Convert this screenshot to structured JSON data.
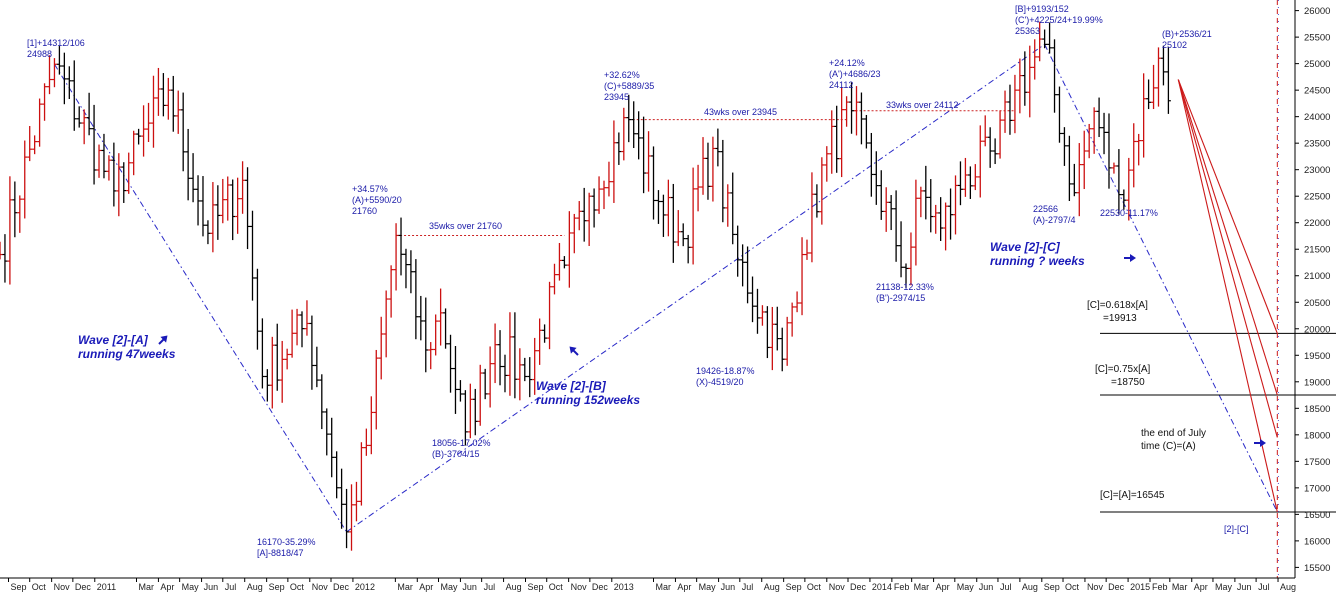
{
  "chart_data": {
    "type": "ohlc",
    "yaxis": {
      "ticks": [
        "15500",
        "16000",
        "16500",
        "17000",
        "17500",
        "18000",
        "18500",
        "19000",
        "19500",
        "20000",
        "20500",
        "21000",
        "21500",
        "22000",
        "22500",
        "23000",
        "23500",
        "24000",
        "24500",
        "25000",
        "25500",
        "26000"
      ],
      "ylim": [
        15300,
        26200
      ]
    },
    "xaxis": {
      "ticks": [
        {
          "label": "Sep",
          "d": "2010-09-01"
        },
        {
          "label": "Oct",
          "d": "2010-10-01"
        },
        {
          "label": "Nov",
          "d": "2010-11-01"
        },
        {
          "label": "Dec",
          "d": "2010-12-01"
        },
        {
          "label": "2011",
          "d": "2011-01-01"
        },
        {
          "label": "Mar",
          "d": "2011-03-01"
        },
        {
          "label": "Apr",
          "d": "2011-04-01"
        },
        {
          "label": "May",
          "d": "2011-05-01"
        },
        {
          "label": "Jun",
          "d": "2011-06-01"
        },
        {
          "label": "Jul",
          "d": "2011-07-01"
        },
        {
          "label": "Aug",
          "d": "2011-08-01"
        },
        {
          "label": "Sep",
          "d": "2011-09-01"
        },
        {
          "label": "Oct",
          "d": "2011-10-01"
        },
        {
          "label": "Nov",
          "d": "2011-11-01"
        },
        {
          "label": "Dec",
          "d": "2011-12-01"
        },
        {
          "label": "2012",
          "d": "2012-01-01"
        },
        {
          "label": "Mar",
          "d": "2012-03-01"
        },
        {
          "label": "Apr",
          "d": "2012-04-01"
        },
        {
          "label": "May",
          "d": "2012-05-01"
        },
        {
          "label": "Jun",
          "d": "2012-06-01"
        },
        {
          "label": "Jul",
          "d": "2012-07-01"
        },
        {
          "label": "Aug",
          "d": "2012-08-01"
        },
        {
          "label": "Sep",
          "d": "2012-09-01"
        },
        {
          "label": "Oct",
          "d": "2012-10-01"
        },
        {
          "label": "Nov",
          "d": "2012-11-01"
        },
        {
          "label": "Dec",
          "d": "2012-12-01"
        },
        {
          "label": "2013",
          "d": "2013-01-01"
        },
        {
          "label": "Mar",
          "d": "2013-03-01"
        },
        {
          "label": "Apr",
          "d": "2013-04-01"
        },
        {
          "label": "May",
          "d": "2013-05-01"
        },
        {
          "label": "Jun",
          "d": "2013-06-01"
        },
        {
          "label": "Jul",
          "d": "2013-07-01"
        },
        {
          "label": "Aug",
          "d": "2013-08-01"
        },
        {
          "label": "Sep",
          "d": "2013-09-01"
        },
        {
          "label": "Oct",
          "d": "2013-10-01"
        },
        {
          "label": "Nov",
          "d": "2013-11-01"
        },
        {
          "label": "Dec",
          "d": "2013-12-01"
        },
        {
          "label": "2014",
          "d": "2014-01-01"
        },
        {
          "label": "Feb",
          "d": "2014-02-01"
        },
        {
          "label": "Mar",
          "d": "2014-03-01"
        },
        {
          "label": "Apr",
          "d": "2014-04-01"
        },
        {
          "label": "May",
          "d": "2014-05-01"
        },
        {
          "label": "Jun",
          "d": "2014-06-01"
        },
        {
          "label": "Jul",
          "d": "2014-07-01"
        },
        {
          "label": "Aug",
          "d": "2014-08-01"
        },
        {
          "label": "Sep",
          "d": "2014-09-01"
        },
        {
          "label": "Oct",
          "d": "2014-10-01"
        },
        {
          "label": "Nov",
          "d": "2014-11-01"
        },
        {
          "label": "Dec",
          "d": "2014-12-01"
        },
        {
          "label": "2015",
          "d": "2015-01-01"
        },
        {
          "label": "Feb",
          "d": "2015-02-01"
        },
        {
          "label": "Mar",
          "d": "2015-03-01"
        },
        {
          "label": "Apr",
          "d": "2015-04-01"
        },
        {
          "label": "May",
          "d": "2015-05-01"
        },
        {
          "label": "Jun",
          "d": "2015-06-01"
        },
        {
          "label": "Jul",
          "d": "2015-07-01"
        },
        {
          "label": "Aug",
          "d": "2015-08-01"
        }
      ],
      "xlim": [
        "2010-08-20",
        "2015-08-25"
      ]
    },
    "grid": false,
    "bar_colors": {
      "up": "#cc1010",
      "down": "#000000"
    },
    "swing_points": [
      {
        "d": "2010-08-20",
        "v": 21400
      },
      {
        "d": "2010-11-05",
        "v": 24988
      },
      {
        "d": "2011-01-28",
        "v": 22600
      },
      {
        "d": "2011-04-15",
        "v": 24500
      },
      {
        "d": "2011-06-10",
        "v": 21800
      },
      {
        "d": "2011-07-29",
        "v": 22800
      },
      {
        "d": "2011-08-26",
        "v": 19100
      },
      {
        "d": "2011-10-28",
        "v": 20100
      },
      {
        "d": "2011-12-23",
        "v": 16170
      },
      {
        "d": "2012-01-20",
        "v": 17800
      },
      {
        "d": "2012-03-02",
        "v": 21760
      },
      {
        "d": "2012-04-13",
        "v": 19600
      },
      {
        "d": "2012-05-04",
        "v": 20300
      },
      {
        "d": "2012-06-08",
        "v": 18056
      },
      {
        "d": "2012-07-20",
        "v": 19700
      },
      {
        "d": "2012-08-31",
        "v": 19100
      },
      {
        "d": "2012-10-26",
        "v": 21200
      },
      {
        "d": "2012-11-30",
        "v": 22500
      },
      {
        "d": "2013-01-25",
        "v": 23945
      },
      {
        "d": "2013-03-08",
        "v": 22400
      },
      {
        "d": "2013-04-12",
        "v": 21700
      },
      {
        "d": "2013-05-24",
        "v": 23400
      },
      {
        "d": "2013-06-28",
        "v": 21300
      },
      {
        "d": "2013-08-30",
        "v": 19426
      },
      {
        "d": "2013-09-27",
        "v": 21400
      },
      {
        "d": "2013-11-01",
        "v": 23300
      },
      {
        "d": "2013-12-06",
        "v": 24112
      },
      {
        "d": "2014-01-10",
        "v": 22700
      },
      {
        "d": "2014-02-21",
        "v": 21138
      },
      {
        "d": "2014-03-14",
        "v": 22600
      },
      {
        "d": "2014-04-11",
        "v": 21900
      },
      {
        "d": "2014-05-16",
        "v": 22900
      },
      {
        "d": "2014-06-27",
        "v": 23300
      },
      {
        "d": "2014-07-25",
        "v": 24500
      },
      {
        "d": "2014-09-05",
        "v": 25363
      },
      {
        "d": "2014-10-17",
        "v": 22566
      },
      {
        "d": "2014-11-14",
        "v": 24100
      },
      {
        "d": "2014-12-19",
        "v": 22530
      },
      {
        "d": "2015-02-13",
        "v": 25102
      },
      {
        "d": "2015-02-27",
        "v": 24300
      }
    ],
    "annotations": [
      {
        "lines": [
          "[1]+14312/106",
          "24988"
        ],
        "color": "blue"
      },
      {
        "lines": [
          "+34.57%",
          "(A)+5590/20",
          "21760"
        ],
        "color": "blue"
      },
      {
        "lines": [
          "35wks over 21760"
        ],
        "color": "blue"
      },
      {
        "lines": [
          "+32.62%",
          "(C)+5889/35",
          "23945"
        ],
        "color": "blue"
      },
      {
        "lines": [
          "43wks over 23945"
        ],
        "color": "blue"
      },
      {
        "lines": [
          "+24.12%",
          "(A')+4686/23",
          "24112"
        ],
        "color": "blue"
      },
      {
        "lines": [
          "33wks over 24112"
        ],
        "color": "blue"
      },
      {
        "lines": [
          "[B]+9193/152",
          "(C')+4225/24+19.99%",
          "25363"
        ],
        "color": "blue"
      },
      {
        "lines": [
          "(B)+2536/21",
          "25102"
        ],
        "color": "blue"
      },
      {
        "lines": [
          "16170-35.29%",
          "[A]-8818/47"
        ],
        "color": "blue"
      },
      {
        "lines": [
          "18056-17.02%",
          "(B)-3704/15"
        ],
        "color": "blue"
      },
      {
        "lines": [
          "19426-18.87%",
          "(X)-4519/20"
        ],
        "color": "blue"
      },
      {
        "lines": [
          "21138-12.33%",
          "(B')-2974/15"
        ],
        "color": "blue"
      },
      {
        "lines": [
          "22566",
          "(A)-2797/4"
        ],
        "color": "blue"
      },
      {
        "lines": [
          "22530-11.17%"
        ],
        "color": "blue"
      },
      {
        "lines": [
          "Wave [2]-[A]",
          "running 47weeks"
        ],
        "color": "wave"
      },
      {
        "lines": [
          "Wave [2]-[B]",
          "running 152weeks"
        ],
        "color": "wave"
      },
      {
        "lines": [
          "Wave [2]-[C]",
          "running ? weeks"
        ],
        "color": "wave"
      },
      {
        "lines": [
          "[C]=0.618x[A]",
          "=19913"
        ],
        "color": "black"
      },
      {
        "lines": [
          "[C]=0.75x[A]",
          "=18750"
        ],
        "color": "black"
      },
      {
        "lines": [
          "the end of July",
          "time (C)=(A)"
        ],
        "color": "black"
      },
      {
        "lines": [
          "[C]=[A]=16545"
        ],
        "color": "black"
      },
      {
        "lines": [
          "[2]-[C]"
        ],
        "color": "blue"
      }
    ],
    "levels": [
      {
        "label": "[C]=0.618x[A] =19913",
        "value": 19913
      },
      {
        "label": "[C]=0.75x[A] =18750",
        "value": 18750
      },
      {
        "label": "[C]=[A]=16545",
        "value": 16545
      }
    ],
    "resistance_lines": [
      {
        "from": "2012-03-02",
        "to": "2012-10-26",
        "value": 21760
      },
      {
        "from": "2013-01-25",
        "to": "2013-11-29",
        "value": 23945
      },
      {
        "from": "2013-12-06",
        "to": "2014-07-25",
        "value": 24112
      }
    ],
    "trendlines": [
      {
        "from": {
          "d": "2010-11-05",
          "v": 24988
        },
        "to": {
          "d": "2011-12-23",
          "v": 16170
        }
      },
      {
        "from": {
          "d": "2011-12-23",
          "v": 16170
        },
        "to": {
          "d": "2014-09-05",
          "v": 25363
        }
      },
      {
        "from": {
          "d": "2014-09-05",
          "v": 25363
        },
        "to": {
          "d": "2015-07-31",
          "v": 16545
        }
      }
    ],
    "projection_lines": [
      {
        "from": {
          "d": "2015-03-13",
          "v": 24700
        },
        "to": {
          "d": "2015-07-31",
          "v": 19913
        }
      },
      {
        "from": {
          "d": "2015-03-13",
          "v": 24700
        },
        "to": {
          "d": "2015-07-31",
          "v": 18750
        }
      },
      {
        "from": {
          "d": "2015-03-13",
          "v": 24700
        },
        "to": {
          "d": "2015-07-31",
          "v": 17950
        }
      },
      {
        "from": {
          "d": "2015-03-13",
          "v": 24700
        },
        "to": {
          "d": "2015-07-31",
          "v": 16545
        }
      }
    ],
    "time_target": "2015-07-31"
  }
}
